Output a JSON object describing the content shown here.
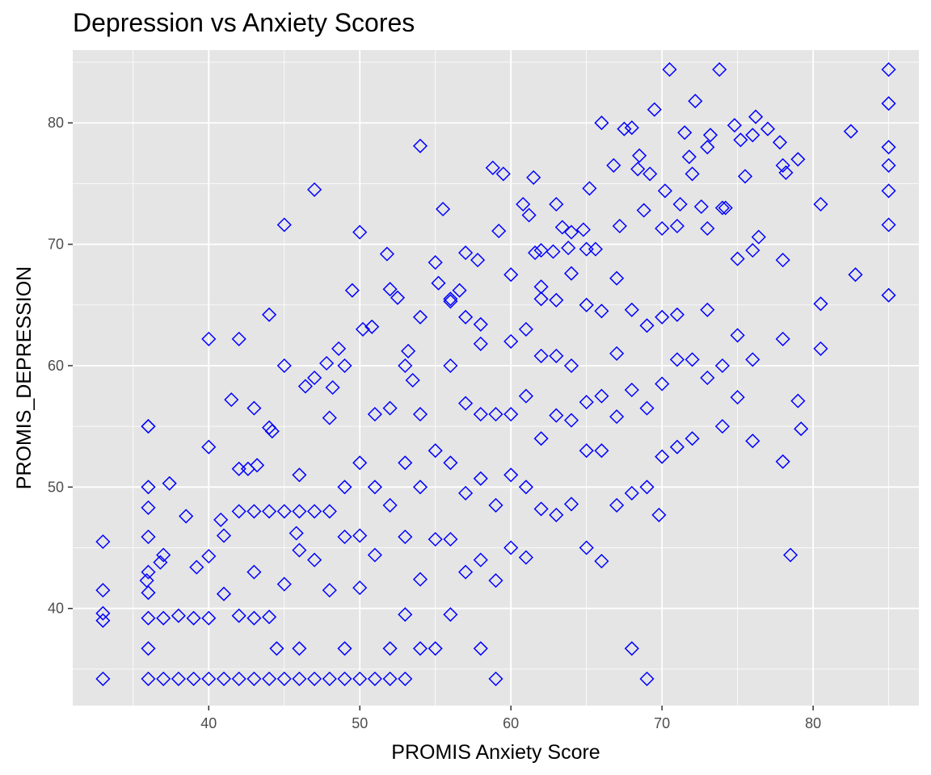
{
  "chart_data": {
    "type": "scatter",
    "title": "Depression vs Anxiety Scores",
    "xlabel": "PROMIS Anxiety Score",
    "ylabel": "PROMIS_DEPRESSION",
    "xlim": [
      31,
      87
    ],
    "ylim": [
      32,
      86
    ],
    "x_ticks": [
      40,
      50,
      60,
      70,
      80
    ],
    "x_tick_labels": [
      "40",
      "50",
      "60",
      "70",
      "80"
    ],
    "y_ticks": [
      40,
      50,
      60,
      70,
      80
    ],
    "y_tick_labels": [
      "40",
      "50",
      "60",
      "70",
      "80"
    ],
    "grid": true,
    "marker": "hollow-diamond",
    "colors": {
      "points": "#0000ff",
      "panel": "#e5e5e5",
      "grid": "#ffffff",
      "text": "#4d4d4d"
    },
    "points_x": [
      33,
      33,
      33,
      33,
      33,
      36,
      36,
      36,
      36,
      36,
      36,
      36,
      36,
      36,
      37,
      37,
      37,
      38,
      38,
      39,
      39,
      40,
      40,
      40,
      40,
      41,
      41,
      41,
      42,
      42,
      42,
      42,
      43,
      43,
      43,
      43,
      43,
      44,
      44,
      44,
      44,
      45,
      45,
      45,
      45,
      46,
      46,
      46,
      46,
      46,
      47,
      47,
      47,
      47,
      48,
      48,
      48,
      48,
      49,
      49,
      49,
      49,
      49,
      50,
      50,
      50,
      50,
      50,
      51,
      51,
      51,
      51,
      52,
      52,
      52,
      52,
      53,
      53,
      53,
      53,
      53,
      54,
      54,
      54,
      54,
      54,
      55,
      55,
      55,
      55,
      56,
      56,
      56,
      56,
      56,
      57,
      57,
      57,
      57,
      58,
      58,
      58,
      58,
      58,
      59,
      59,
      59,
      59,
      60,
      60,
      60,
      60,
      60,
      61,
      61,
      61,
      61,
      62,
      62,
      62,
      62,
      62,
      63,
      63,
      63,
      63,
      64,
      64,
      64,
      64,
      65,
      65,
      65,
      65,
      65,
      66,
      66,
      66,
      66,
      67,
      67,
      67,
      67,
      68,
      68,
      68,
      68,
      69,
      69,
      69,
      69,
      70,
      70,
      70,
      70,
      71,
      71,
      71,
      71,
      72,
      72,
      72,
      73,
      73,
      73,
      73,
      74,
      74,
      74,
      75,
      75,
      75,
      76,
      76,
      76,
      76,
      77,
      78,
      78,
      78,
      78,
      79,
      79,
      80.5,
      80.5,
      80.5,
      82.5,
      82.8,
      85,
      85,
      85,
      85,
      85,
      85,
      85,
      40,
      42,
      44,
      45,
      47,
      52,
      54,
      58,
      62,
      64,
      69.5,
      70.5,
      73.8,
      56,
      61.5,
      66,
      68,
      75.5,
      49.5,
      63,
      68.5,
      71.5,
      59.5,
      52.5,
      38.5,
      36,
      44.5,
      41.5,
      53.5,
      57,
      65.2,
      67.5,
      72.2,
      74.8,
      76.2,
      77.8,
      79.2,
      48.2,
      51.8,
      55.5,
      58.8,
      62.8,
      60.8,
      66.8,
      69.8,
      45.8,
      43.2,
      47.8,
      50.8,
      55.2,
      57.8,
      61.2,
      63.8,
      64.8,
      68.8,
      70.2,
      71.8,
      73.2,
      75.2,
      78.5,
      35.9,
      36.8,
      37.4,
      39.2,
      40.8,
      42.6,
      44.2,
      46.4,
      48.6,
      50.2,
      53.2,
      56.6,
      59.2,
      61.6,
      63.4,
      65.6,
      67.2,
      68.4,
      69.2,
      71.2,
      72.6,
      74.2,
      76.4,
      78.2,
      80.2
    ],
    "points_y": [
      34.2,
      39,
      39.6,
      41.5,
      45.5,
      34.2,
      36.7,
      39.2,
      41.3,
      43,
      45.9,
      48.3,
      50,
      55,
      34.2,
      39.2,
      44.4,
      34.2,
      39.4,
      34.2,
      39.2,
      34.2,
      39.2,
      44.3,
      62.2,
      34.2,
      41.2,
      46,
      34.2,
      39.4,
      48,
      51.5,
      34.2,
      39.2,
      43,
      48,
      56.5,
      34.2,
      39.3,
      48,
      64.2,
      34.2,
      42,
      48,
      71.6,
      34.2,
      36.7,
      44.8,
      48,
      51,
      34.2,
      44,
      48,
      74.5,
      34.2,
      41.5,
      48,
      55.7,
      34.2,
      36.7,
      45.9,
      50,
      60,
      34.2,
      41.7,
      46,
      52,
      71,
      34.2,
      44.4,
      50,
      56,
      34.2,
      36.7,
      48.5,
      56.5,
      34.2,
      39.5,
      45.9,
      52,
      60,
      36.7,
      42.4,
      50,
      56,
      64,
      36.7,
      45.7,
      53,
      68.5,
      39.5,
      45.7,
      52,
      60,
      65.3,
      43,
      49.5,
      56.9,
      64,
      36.7,
      44,
      50.7,
      56,
      63.4,
      34.2,
      42.3,
      48.5,
      56,
      45,
      51,
      56,
      62,
      67.5,
      44.2,
      50,
      57.5,
      63,
      48.2,
      54,
      60.8,
      65.5,
      69.5,
      47.7,
      55.9,
      60.8,
      65.4,
      48.6,
      55.5,
      60,
      67.6,
      45,
      53,
      57,
      65,
      69.6,
      43.9,
      53,
      57.5,
      64.5,
      48.5,
      55.8,
      61,
      67.2,
      36.7,
      49.5,
      58,
      64.6,
      34.2,
      50,
      56.5,
      63.3,
      52.5,
      58.5,
      64,
      71.3,
      53.3,
      60.5,
      64.2,
      71.5,
      54,
      60.5,
      75.8,
      59,
      64.6,
      71.3,
      78,
      55,
      60,
      73,
      57.4,
      62.5,
      68.8,
      53.8,
      60.5,
      69.5,
      79,
      79.5,
      52.1,
      62.2,
      68.7,
      76.5,
      57.1,
      77,
      61.4,
      65.1,
      73.3,
      79.3,
      67.5,
      84.4,
      81.6,
      78,
      76.5,
      74.4,
      71.6,
      65.8,
      53.3,
      62.2,
      54.9,
      60,
      59,
      66.3,
      78.1,
      61.8,
      66.5,
      71,
      81.1,
      84.4,
      84.4,
      65.5,
      75.5,
      80,
      79.6,
      75.6,
      66.2,
      73.3,
      77.3,
      79.2,
      75.8,
      65.6,
      47.6,
      55,
      36.7,
      57.2,
      58.8,
      69.3,
      74.6,
      79.5,
      81.8,
      79.8,
      80.5,
      78.4,
      54.8,
      58.2,
      69.2,
      72.9,
      76.3,
      69.4,
      73.3,
      76.5,
      47.7,
      46.2,
      51.8,
      60.2,
      63.2,
      66.8,
      68.7,
      72.4,
      69.7,
      71.2,
      72.8,
      74.4,
      77.2,
      79,
      78.6,
      44.4,
      42.3,
      43.8,
      50.3,
      43.4,
      47.3,
      51.5,
      54.6,
      58.3,
      61.4,
      63,
      61.2,
      66.2,
      71.1,
      69.3,
      71.4,
      69.6,
      71.5,
      76.2,
      75.8,
      73.3,
      73.1,
      73,
      70.6,
      75.9
    ]
  }
}
